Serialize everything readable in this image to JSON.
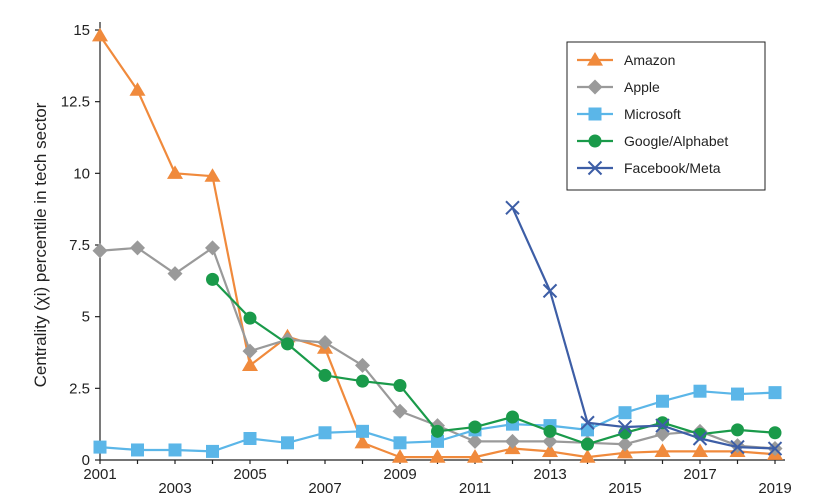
{
  "chart_data": {
    "type": "line",
    "title": "",
    "xlabel": "",
    "ylabel": "Centrality (χi) percentile in tech sector",
    "xlim": [
      2001,
      2019
    ],
    "ylim": [
      0,
      15
    ],
    "x_ticks": [
      "2001",
      "2003",
      "2005",
      "2007",
      "2009",
      "2011",
      "2013",
      "2015",
      "2017",
      "2019"
    ],
    "y_ticks": [
      "0",
      "2.5",
      "5",
      "7.5",
      "10",
      "12.5",
      "15"
    ],
    "grid": false,
    "legend_position": "top-right",
    "series": [
      {
        "name": "Amazon",
        "color": "#f08a3c",
        "marker": "triangle",
        "points": [
          [
            2001,
            14.8
          ],
          [
            2002,
            12.9
          ],
          [
            2003,
            10.0
          ],
          [
            2004,
            9.9
          ],
          [
            2005,
            3.3
          ],
          [
            2006,
            4.3
          ],
          [
            2007,
            3.9
          ],
          [
            2008,
            0.6
          ],
          [
            2009,
            0.1
          ],
          [
            2010,
            0.1
          ],
          [
            2011,
            0.1
          ],
          [
            2012,
            0.4
          ],
          [
            2013,
            0.3
          ],
          [
            2014,
            0.1
          ],
          [
            2015,
            0.25
          ],
          [
            2016,
            0.3
          ],
          [
            2017,
            0.3
          ],
          [
            2018,
            0.3
          ],
          [
            2019,
            0.2
          ]
        ]
      },
      {
        "name": "Apple",
        "color": "#9a9a9a",
        "marker": "diamond",
        "points": [
          [
            2001,
            7.3
          ],
          [
            2002,
            7.4
          ],
          [
            2003,
            6.5
          ],
          [
            2004,
            7.4
          ],
          [
            2005,
            3.8
          ],
          [
            2006,
            4.2
          ],
          [
            2007,
            4.1
          ],
          [
            2008,
            3.3
          ],
          [
            2009,
            1.7
          ],
          [
            2010,
            1.2
          ],
          [
            2011,
            0.65
          ],
          [
            2012,
            0.65
          ],
          [
            2013,
            0.65
          ],
          [
            2014,
            0.6
          ],
          [
            2015,
            0.55
          ],
          [
            2016,
            0.9
          ],
          [
            2017,
            1.0
          ],
          [
            2018,
            0.5
          ],
          [
            2019,
            0.4
          ]
        ]
      },
      {
        "name": "Microsoft",
        "color": "#5bb6e8",
        "marker": "square",
        "points": [
          [
            2001,
            0.45
          ],
          [
            2002,
            0.35
          ],
          [
            2003,
            0.35
          ],
          [
            2004,
            0.3
          ],
          [
            2005,
            0.75
          ],
          [
            2006,
            0.6
          ],
          [
            2007,
            0.95
          ],
          [
            2008,
            1.0
          ],
          [
            2009,
            0.6
          ],
          [
            2010,
            0.65
          ],
          [
            2011,
            1.05
          ],
          [
            2012,
            1.25
          ],
          [
            2013,
            1.2
          ],
          [
            2014,
            1.05
          ],
          [
            2015,
            1.65
          ],
          [
            2016,
            2.05
          ],
          [
            2017,
            2.4
          ],
          [
            2018,
            2.3
          ],
          [
            2019,
            2.35
          ]
        ]
      },
      {
        "name": "Google/Alphabet",
        "color": "#1a9a4a",
        "marker": "circle",
        "points": [
          [
            2004,
            6.3
          ],
          [
            2005,
            4.95
          ],
          [
            2006,
            4.05
          ],
          [
            2007,
            2.95
          ],
          [
            2008,
            2.75
          ],
          [
            2009,
            2.6
          ],
          [
            2010,
            1.0
          ],
          [
            2011,
            1.15
          ],
          [
            2012,
            1.5
          ],
          [
            2013,
            1.0
          ],
          [
            2014,
            0.55
          ],
          [
            2015,
            0.95
          ],
          [
            2016,
            1.3
          ],
          [
            2017,
            0.9
          ],
          [
            2018,
            1.05
          ],
          [
            2019,
            0.95
          ]
        ]
      },
      {
        "name": "Facebook/Meta",
        "color": "#3d5ea6",
        "marker": "x",
        "points": [
          [
            2012,
            8.8
          ],
          [
            2013,
            5.9
          ],
          [
            2014,
            1.3
          ],
          [
            2015,
            1.15
          ],
          [
            2016,
            1.2
          ],
          [
            2017,
            0.75
          ],
          [
            2018,
            0.45
          ],
          [
            2019,
            0.4
          ]
        ]
      }
    ]
  }
}
